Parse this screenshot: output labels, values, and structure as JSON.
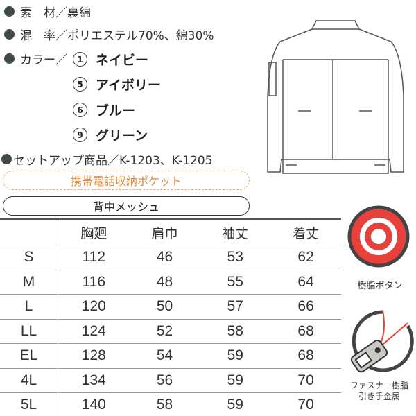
{
  "specs": {
    "material": "素　材／裏綿",
    "blend": "混　率／ポリエステル70%、綿30%",
    "color_label": "カラー／",
    "colors": [
      {
        "number": "1",
        "name": "ネイビー"
      },
      {
        "number": "5",
        "name": "アイボリー"
      },
      {
        "number": "6",
        "name": "ブルー"
      },
      {
        "number": "9",
        "name": "グリーン"
      }
    ],
    "setup": "セットアップ商品／K-1203、K-1205"
  },
  "features": {
    "pocket": "携帯電話収納ポケット",
    "mesh": "背中メッシュ"
  },
  "size_table": {
    "headers": [
      "",
      "胸廻",
      "肩巾",
      "袖丈",
      "着丈"
    ],
    "rows": [
      [
        "S",
        "112",
        "46",
        "53",
        "62"
      ],
      [
        "M",
        "116",
        "48",
        "55",
        "64"
      ],
      [
        "L",
        "120",
        "50",
        "57",
        "66"
      ],
      [
        "LL",
        "124",
        "52",
        "58",
        "68"
      ],
      [
        "EL",
        "128",
        "54",
        "59",
        "68"
      ],
      [
        "4L",
        "134",
        "56",
        "59",
        "70"
      ],
      [
        "5L",
        "140",
        "58",
        "59",
        "70"
      ]
    ]
  },
  "details": {
    "button_caption": "樹脂ボタン",
    "zipper_caption_1": "ファスナー樹脂",
    "zipper_caption_2": "引き手金属"
  },
  "colors": {
    "accent_orange": "#e58a3a",
    "button_red": "#e8413c",
    "bullet": "#3f4a45"
  }
}
